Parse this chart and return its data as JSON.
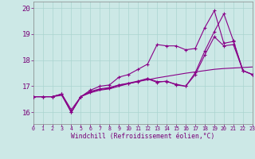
{
  "xlabel": "Windchill (Refroidissement éolien,°C)",
  "xlim": [
    0,
    23
  ],
  "ylim": [
    15.55,
    20.25
  ],
  "yticks": [
    16,
    17,
    18,
    19,
    20
  ],
  "xticks": [
    0,
    1,
    2,
    3,
    4,
    5,
    6,
    7,
    8,
    9,
    10,
    11,
    12,
    13,
    14,
    15,
    16,
    17,
    18,
    19,
    20,
    21,
    22,
    23
  ],
  "bg_color": "#cce8e6",
  "grid_color": "#aad4d0",
  "line_color": "#880088",
  "series1": [
    16.6,
    16.6,
    16.6,
    16.65,
    16.0,
    16.6,
    16.75,
    16.85,
    16.9,
    17.0,
    17.1,
    17.18,
    17.25,
    17.32,
    17.38,
    17.44,
    17.5,
    17.55,
    17.6,
    17.65,
    17.68,
    17.7,
    17.72,
    17.74
  ],
  "series2": [
    16.6,
    16.6,
    16.6,
    16.7,
    16.0,
    16.6,
    16.78,
    16.88,
    16.92,
    17.05,
    17.12,
    17.2,
    17.3,
    17.18,
    17.18,
    17.08,
    17.0,
    17.45,
    18.2,
    18.9,
    18.55,
    18.6,
    17.6,
    17.45
  ],
  "series3": [
    16.6,
    16.6,
    16.6,
    16.7,
    16.0,
    16.6,
    16.85,
    17.0,
    17.05,
    17.35,
    17.45,
    17.65,
    17.85,
    18.6,
    18.55,
    18.55,
    18.4,
    18.45,
    19.25,
    19.9,
    18.65,
    18.72,
    17.6,
    17.45
  ],
  "series4": [
    16.6,
    16.6,
    16.6,
    16.7,
    16.1,
    16.6,
    16.8,
    16.9,
    16.95,
    17.05,
    17.1,
    17.18,
    17.28,
    17.15,
    17.2,
    17.05,
    17.0,
    17.52,
    18.35,
    19.1,
    19.78,
    18.75,
    17.6,
    17.45
  ]
}
